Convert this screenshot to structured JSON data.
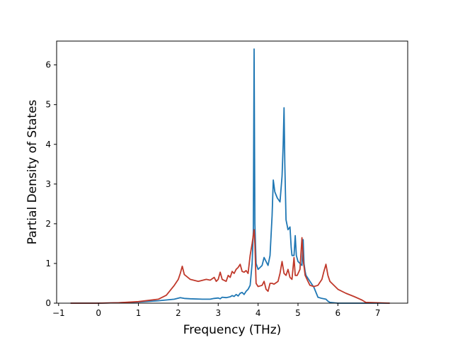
{
  "chart_data": {
    "type": "line",
    "title": "",
    "xlabel": "Frequency (THz)",
    "ylabel": "Partial Density of States",
    "xlim": [
      -1.05,
      7.75
    ],
    "ylim": [
      0,
      6.6
    ],
    "xticks": [
      -1,
      0,
      1,
      2,
      3,
      4,
      5,
      6,
      7
    ],
    "yticks": [
      0,
      1,
      2,
      3,
      4,
      5,
      6
    ],
    "grid": false,
    "legend": "none",
    "series": [
      {
        "color": "#1f77b4",
        "x": [
          -0.7,
          0.0,
          0.5,
          1.0,
          1.5,
          1.9,
          2.05,
          2.15,
          2.3,
          2.6,
          2.8,
          2.9,
          3.0,
          3.05,
          3.1,
          3.2,
          3.3,
          3.35,
          3.4,
          3.45,
          3.5,
          3.55,
          3.6,
          3.65,
          3.7,
          3.75,
          3.8,
          3.85,
          3.88,
          3.9,
          3.92,
          3.95,
          4.0,
          4.05,
          4.1,
          4.15,
          4.2,
          4.25,
          4.3,
          4.35,
          4.38,
          4.42,
          4.48,
          4.55,
          4.6,
          4.63,
          4.65,
          4.67,
          4.7,
          4.75,
          4.8,
          4.83,
          4.85,
          4.9,
          4.93,
          4.96,
          5.0,
          5.1,
          5.13,
          5.15,
          5.18,
          5.2,
          5.3,
          5.4,
          5.5,
          5.6,
          5.7,
          5.75,
          5.8,
          6.0,
          6.5,
          7.3
        ],
        "y": [
          0,
          0,
          0.01,
          0.03,
          0.06,
          0.1,
          0.14,
          0.12,
          0.11,
          0.1,
          0.1,
          0.12,
          0.13,
          0.11,
          0.15,
          0.14,
          0.16,
          0.19,
          0.17,
          0.22,
          0.18,
          0.25,
          0.27,
          0.22,
          0.3,
          0.35,
          0.45,
          1.0,
          1.8,
          6.4,
          2.0,
          1.0,
          0.85,
          0.9,
          0.95,
          1.15,
          1.05,
          0.95,
          1.2,
          2.2,
          3.1,
          2.8,
          2.65,
          2.55,
          3.2,
          4.0,
          4.92,
          3.5,
          2.1,
          1.85,
          1.92,
          1.4,
          1.2,
          1.2,
          1.7,
          1.2,
          1.05,
          0.95,
          1.6,
          1.0,
          0.8,
          0.7,
          0.55,
          0.4,
          0.15,
          0.12,
          0.1,
          0.05,
          0.02,
          0,
          0,
          0
        ]
      },
      {
        "color": "#c0392b",
        "x": [
          -0.7,
          0.0,
          0.5,
          1.0,
          1.5,
          1.7,
          1.9,
          2.0,
          2.05,
          2.1,
          2.15,
          2.3,
          2.5,
          2.7,
          2.8,
          2.9,
          2.95,
          3.0,
          3.05,
          3.1,
          3.2,
          3.25,
          3.3,
          3.35,
          3.4,
          3.45,
          3.5,
          3.55,
          3.6,
          3.65,
          3.7,
          3.75,
          3.8,
          3.85,
          3.9,
          3.92,
          3.95,
          4.0,
          4.1,
          4.15,
          4.2,
          4.25,
          4.3,
          4.35,
          4.4,
          4.5,
          4.55,
          4.6,
          4.65,
          4.7,
          4.75,
          4.8,
          4.85,
          4.9,
          4.93,
          4.98,
          5.05,
          5.1,
          5.13,
          5.18,
          5.25,
          5.3,
          5.4,
          5.5,
          5.6,
          5.65,
          5.7,
          5.75,
          5.8,
          5.9,
          6.0,
          6.2,
          6.4,
          6.6,
          6.7,
          7.3
        ],
        "y": [
          0,
          0,
          0.01,
          0.04,
          0.1,
          0.2,
          0.45,
          0.6,
          0.75,
          0.93,
          0.72,
          0.6,
          0.55,
          0.6,
          0.58,
          0.65,
          0.55,
          0.6,
          0.78,
          0.6,
          0.55,
          0.7,
          0.65,
          0.8,
          0.75,
          0.85,
          0.9,
          0.98,
          0.8,
          0.78,
          0.82,
          0.75,
          1.2,
          1.5,
          1.85,
          1.5,
          0.5,
          0.42,
          0.45,
          0.55,
          0.35,
          0.3,
          0.5,
          0.5,
          0.48,
          0.55,
          0.75,
          1.05,
          0.75,
          0.7,
          0.85,
          0.65,
          0.6,
          1.15,
          0.7,
          0.7,
          0.85,
          1.65,
          1.1,
          0.7,
          0.55,
          0.45,
          0.42,
          0.45,
          0.6,
          0.8,
          0.98,
          0.7,
          0.55,
          0.45,
          0.35,
          0.25,
          0.17,
          0.08,
          0.02,
          0
        ]
      }
    ]
  }
}
